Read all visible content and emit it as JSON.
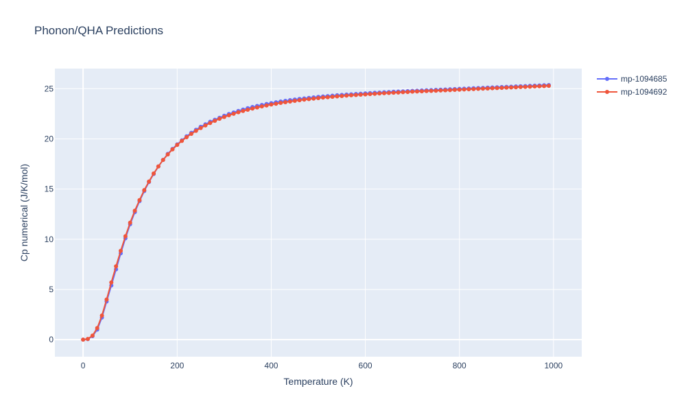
{
  "chart_data": {
    "type": "line",
    "title": "Phonon/QHA Predictions",
    "xlabel": "Temperature (K)",
    "ylabel": "Cp numerical (J/K/mol)",
    "xlim": [
      -60,
      1060
    ],
    "ylim": [
      -1.7,
      27
    ],
    "x_ticks": [
      0,
      200,
      400,
      600,
      800,
      1000
    ],
    "y_ticks": [
      0,
      5,
      10,
      15,
      20,
      25
    ],
    "x_tick_labels": [
      "0",
      "200",
      "400",
      "600",
      "800",
      "1000"
    ],
    "y_tick_labels": [
      "0",
      "5",
      "10",
      "15",
      "20",
      "25"
    ],
    "grid": true,
    "legend_position": "top-right",
    "background": "#E5ECF6",
    "x": [
      0,
      10,
      20,
      30,
      40,
      50,
      60,
      70,
      80,
      90,
      100,
      110,
      120,
      130,
      140,
      150,
      160,
      170,
      180,
      190,
      200,
      210,
      220,
      230,
      240,
      250,
      260,
      270,
      280,
      290,
      300,
      310,
      320,
      330,
      340,
      350,
      360,
      370,
      380,
      390,
      400,
      410,
      420,
      430,
      440,
      450,
      460,
      470,
      480,
      490,
      500,
      510,
      520,
      530,
      540,
      550,
      560,
      570,
      580,
      590,
      600,
      610,
      620,
      630,
      640,
      650,
      660,
      670,
      680,
      690,
      700,
      710,
      720,
      730,
      740,
      750,
      760,
      770,
      780,
      790,
      800,
      810,
      820,
      830,
      840,
      850,
      860,
      870,
      880,
      890,
      900,
      910,
      920,
      930,
      940,
      950,
      960,
      970,
      980,
      990
    ],
    "series": [
      {
        "name": "mp-1094685",
        "color": "#636EFA",
        "values": [
          0,
          0.05,
          0.35,
          1.0,
          2.2,
          3.8,
          5.4,
          7.0,
          8.6,
          10.1,
          11.5,
          12.7,
          13.8,
          14.8,
          15.7,
          16.5,
          17.25,
          17.9,
          18.5,
          19.0,
          19.45,
          19.85,
          20.25,
          20.6,
          20.9,
          21.2,
          21.45,
          21.7,
          21.9,
          22.1,
          22.3,
          22.47,
          22.63,
          22.78,
          22.92,
          23.05,
          23.17,
          23.28,
          23.38,
          23.47,
          23.56,
          23.64,
          23.72,
          23.79,
          23.86,
          23.92,
          23.98,
          24.03,
          24.08,
          24.13,
          24.18,
          24.22,
          24.26,
          24.3,
          24.34,
          24.38,
          24.41,
          24.44,
          24.47,
          24.5,
          24.53,
          24.56,
          24.59,
          24.61,
          24.64,
          24.66,
          24.69,
          24.71,
          24.73,
          24.75,
          24.78,
          24.8,
          24.82,
          24.84,
          24.86,
          24.88,
          24.9,
          24.92,
          24.94,
          24.96,
          24.98,
          25.0,
          25.02,
          25.04,
          25.06,
          25.08,
          25.1,
          25.12,
          25.14,
          25.16,
          25.18,
          25.2,
          25.22,
          25.24,
          25.26,
          25.28,
          25.3,
          25.32,
          25.34,
          25.36
        ]
      },
      {
        "name": "mp-1094692",
        "color": "#EF553B",
        "values": [
          0,
          0.07,
          0.4,
          1.15,
          2.4,
          4.0,
          5.7,
          7.3,
          8.85,
          10.3,
          11.65,
          12.85,
          13.9,
          14.9,
          15.75,
          16.55,
          17.25,
          17.9,
          18.45,
          18.95,
          19.4,
          19.8,
          20.17,
          20.5,
          20.8,
          21.08,
          21.34,
          21.58,
          21.8,
          22.0,
          22.18,
          22.35,
          22.5,
          22.65,
          22.78,
          22.9,
          23.02,
          23.13,
          23.23,
          23.33,
          23.42,
          23.5,
          23.58,
          23.65,
          23.72,
          23.79,
          23.85,
          23.91,
          23.96,
          24.01,
          24.06,
          24.11,
          24.15,
          24.19,
          24.23,
          24.27,
          24.31,
          24.34,
          24.37,
          24.4,
          24.43,
          24.46,
          24.49,
          24.52,
          24.55,
          24.57,
          24.6,
          24.62,
          24.65,
          24.67,
          24.7,
          24.72,
          24.74,
          24.76,
          24.78,
          24.8,
          24.82,
          24.84,
          24.86,
          24.88,
          24.9,
          24.92,
          24.94,
          24.96,
          24.98,
          25.0,
          25.02,
          25.04,
          25.06,
          25.08,
          25.1,
          25.12,
          25.14,
          25.16,
          25.18,
          25.2,
          25.22,
          25.24,
          25.26,
          25.28
        ]
      }
    ]
  }
}
